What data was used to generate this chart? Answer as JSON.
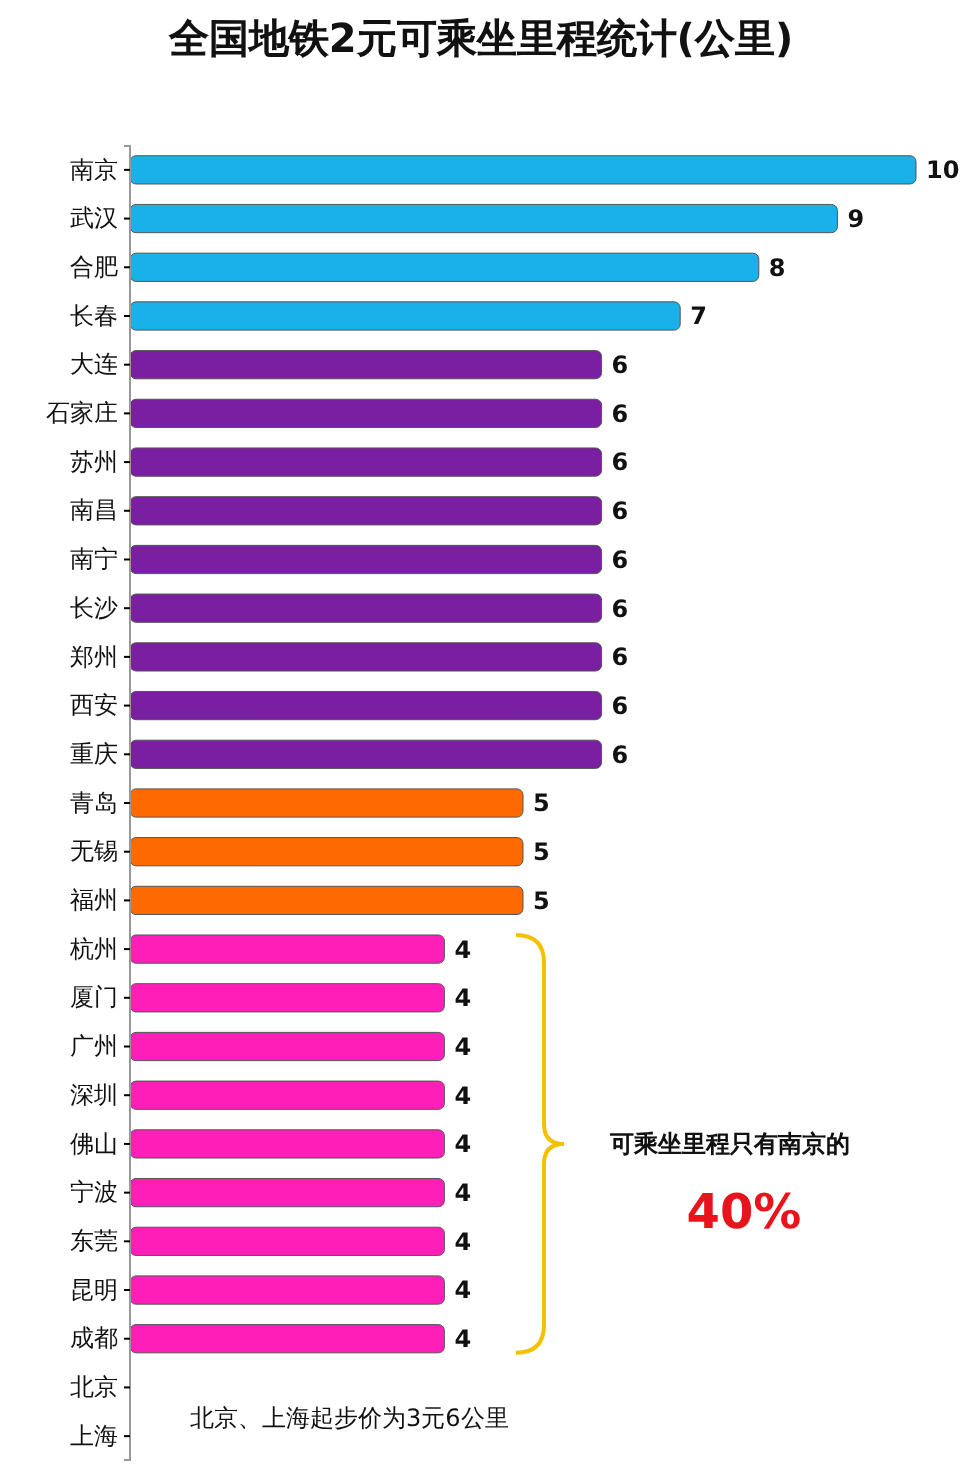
{
  "chart_data": {
    "type": "bar",
    "orientation": "horizontal",
    "title": "全国地铁2元可乘坐里程统计(公里)",
    "categories": [
      "南京",
      "武汉",
      "合肥",
      "长春",
      "大连",
      "石家庄",
      "苏州",
      "南昌",
      "南宁",
      "长沙",
      "郑州",
      "西安",
      "重庆",
      "青岛",
      "无锡",
      "福州",
      "杭州",
      "厦门",
      "广州",
      "深圳",
      "佛山",
      "宁波",
      "东莞",
      "昆明",
      "成都",
      "北京",
      "上海"
    ],
    "values": [
      10,
      9,
      8,
      7,
      6,
      6,
      6,
      6,
      6,
      6,
      6,
      6,
      6,
      5,
      5,
      5,
      4,
      4,
      4,
      4,
      4,
      4,
      4,
      4,
      4,
      null,
      null
    ],
    "colors": [
      "#1ab0ea",
      "#1ab0ea",
      "#1ab0ea",
      "#1ab0ea",
      "#7b1fa2",
      "#7b1fa2",
      "#7b1fa2",
      "#7b1fa2",
      "#7b1fa2",
      "#7b1fa2",
      "#7b1fa2",
      "#7b1fa2",
      "#7b1fa2",
      "#ff6a00",
      "#ff6a00",
      "#ff6a00",
      "#ff1fb8",
      "#ff1fb8",
      "#ff1fb8",
      "#ff1fb8",
      "#ff1fb8",
      "#ff1fb8",
      "#ff1fb8",
      "#ff1fb8",
      "#ff1fb8",
      null,
      null
    ],
    "data_labels": true,
    "annotations": [
      "可乘坐里程只有南京的",
      "40%",
      "北京、上海起步价为3元6公里"
    ]
  }
}
